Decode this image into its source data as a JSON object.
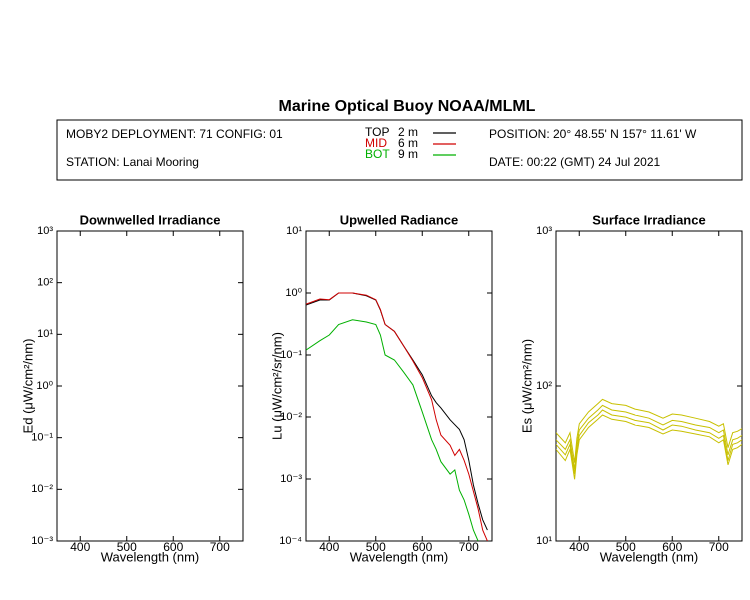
{
  "title": "Marine Optical Buoy NOAA/MLML",
  "header": {
    "deployment": "MOBY2 DEPLOYMENT: 71 CONFIG: 01",
    "station": "STATION: Lanai Mooring",
    "position": "POSITION: 20° 48.55' N   157° 11.61' W",
    "date": "DATE: 00:22 (GMT) 24 Jul 2021"
  },
  "chart_data": [
    {
      "type": "line",
      "title": "Downwelled Irradiance",
      "xlabel": "Wavelength (nm)",
      "ylabel": "Ed  (μW/cm²/nm)",
      "ylog": true,
      "xlim": [
        350,
        750
      ],
      "xticks": [
        400,
        500,
        600,
        700
      ],
      "ylim": [
        0.001,
        1000
      ],
      "yticks": [
        {
          "value": 0.001,
          "label": "10⁻³"
        },
        {
          "value": 0.01,
          "label": "10⁻²"
        },
        {
          "value": 0.1,
          "label": "10⁻¹"
        },
        {
          "value": 1,
          "label": "10⁰"
        },
        {
          "value": 10,
          "label": "10¹"
        },
        {
          "value": 100,
          "label": "10²"
        },
        {
          "value": 1000,
          "label": "10³"
        }
      ],
      "x": [],
      "series": []
    },
    {
      "type": "line",
      "title": "Upwelled Radiance",
      "xlabel": "Wavelength (nm)",
      "ylabel": "Lu  (μW/cm²/sr/nm)",
      "ylog": true,
      "xlim": [
        350,
        750
      ],
      "xticks": [
        400,
        500,
        600,
        700
      ],
      "ylim": [
        0.0001,
        10
      ],
      "yticks": [
        {
          "value": 0.0001,
          "label": "10⁻⁴"
        },
        {
          "value": 0.001,
          "label": "10⁻³"
        },
        {
          "value": 0.01,
          "label": "10⁻²"
        },
        {
          "value": 0.1,
          "label": "10⁻¹"
        },
        {
          "value": 1,
          "label": "10⁰"
        },
        {
          "value": 10,
          "label": "10¹"
        }
      ],
      "x": [
        350,
        380,
        400,
        420,
        450,
        480,
        500,
        510,
        520,
        540,
        560,
        580,
        600,
        620,
        630,
        640,
        660,
        670,
        680,
        690,
        700,
        710,
        720,
        730,
        740
      ],
      "series": [
        {
          "name": "TOP",
          "depth": "2  m",
          "color": "#000000",
          "values": [
            0.64,
            0.77,
            0.77,
            1.0,
            1.0,
            0.9,
            0.77,
            0.53,
            0.31,
            0.24,
            0.14,
            0.083,
            0.048,
            0.022,
            0.017,
            0.014,
            0.009,
            0.0075,
            0.0063,
            0.0043,
            0.002,
            0.0008,
            0.0004,
            0.00022,
            0.00015
          ]
        },
        {
          "name": "MID",
          "depth": "6  m",
          "color": "#d00000",
          "values": [
            0.66,
            0.8,
            0.78,
            1.0,
            1.0,
            0.92,
            0.78,
            0.54,
            0.31,
            0.24,
            0.14,
            0.08,
            0.043,
            0.019,
            0.009,
            0.0051,
            0.0035,
            0.0024,
            0.003,
            0.002,
            0.0012,
            0.00063,
            0.00033,
            0.00015,
            0.0001
          ]
        },
        {
          "name": "BOT",
          "depth": "9  m",
          "color": "#00b000",
          "values": [
            0.12,
            0.17,
            0.21,
            0.31,
            0.37,
            0.34,
            0.31,
            0.21,
            0.1,
            0.083,
            0.053,
            0.033,
            0.012,
            0.0043,
            0.003,
            0.0019,
            0.0012,
            0.0014,
            0.00066,
            0.00046,
            0.00027,
            0.00015,
            0.0001,
            null,
            null
          ]
        }
      ]
    },
    {
      "type": "line",
      "title": "Surface Irradiance",
      "xlabel": "Wavelength (nm)",
      "ylabel": "Es  (μW/cm²/nm)",
      "ylog": true,
      "xlim": [
        350,
        750
      ],
      "xticks": [
        400,
        500,
        600,
        700
      ],
      "ylim": [
        10,
        1000
      ],
      "yticks": [
        {
          "value": 10,
          "label": "10¹"
        },
        {
          "value": 100,
          "label": "10²"
        },
        {
          "value": 1000,
          "label": "10³"
        }
      ],
      "x": [
        350,
        370,
        380,
        390,
        395,
        400,
        420,
        440,
        450,
        470,
        500,
        520,
        550,
        580,
        600,
        620,
        650,
        680,
        700,
        710,
        720,
        730,
        740,
        750
      ],
      "series": [
        {
          "color": "#c8c000",
          "values": [
            50,
            43,
            50,
            32,
            46,
            57,
            68,
            77,
            82,
            77,
            75,
            71,
            68,
            62,
            66,
            65,
            62,
            59,
            55,
            57,
            40,
            50,
            51,
            53
          ]
        },
        {
          "color": "#c8c000",
          "values": [
            45,
            39,
            45,
            29,
            42,
            52,
            62,
            70,
            75,
            70,
            68,
            65,
            62,
            56,
            60,
            59,
            56,
            54,
            50,
            52,
            36,
            45,
            46,
            48
          ]
        },
        {
          "color": "#c8c000",
          "values": [
            42,
            36,
            42,
            27,
            39,
            48,
            58,
            65,
            70,
            65,
            63,
            60,
            58,
            52,
            56,
            55,
            52,
            50,
            46,
            48,
            33,
            42,
            43,
            45
          ]
        },
        {
          "color": "#c8c000",
          "values": [
            39,
            33,
            39,
            25,
            36,
            45,
            54,
            61,
            65,
            61,
            59,
            56,
            54,
            49,
            52,
            51,
            49,
            47,
            43,
            45,
            31,
            39,
            40,
            42
          ]
        }
      ]
    }
  ]
}
